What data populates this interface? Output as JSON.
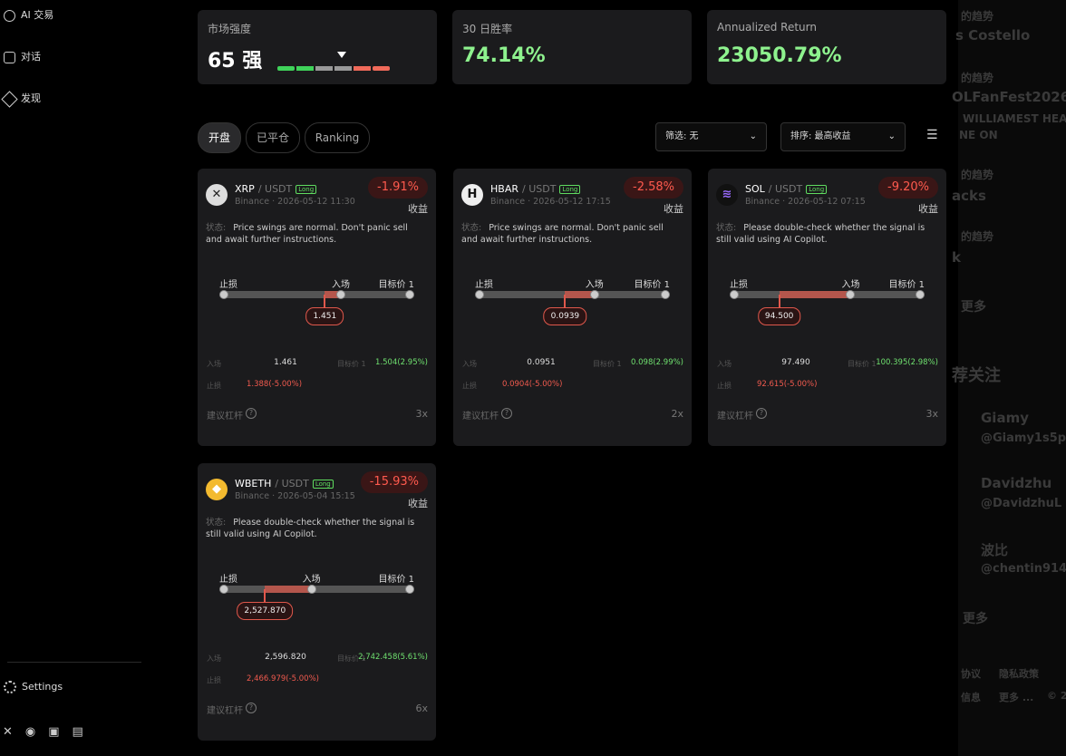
{
  "sidebar": {
    "nav": [
      "AI 交易",
      "对话",
      "发现"
    ],
    "settings": "Settings"
  },
  "stats": {
    "strength": {
      "label": "市场强度",
      "score": "65",
      "grade": "强"
    },
    "win_rate": {
      "label": "30 日胜率",
      "value": "74.14%"
    },
    "annualized": {
      "label": "Annualized Return",
      "value": "23050.79%"
    }
  },
  "tabs": [
    "开盘",
    "已平仓",
    "Ranking"
  ],
  "filter": "筛选: 无",
  "sort": "排序: 最高收益",
  "cards": [
    {
      "symbol": "XRP",
      "quote": "/ USDT",
      "side": "Long",
      "meta": "Binance · 2026-05-12 11:30",
      "pnl": "-1.91%",
      "pnl_label": "收益",
      "status_label": "状态:",
      "status": "Price swings are normal. Don't panic sell and await further instructions.",
      "stop_label": "止损",
      "entry_label": "入场",
      "target_label": "目标价 1",
      "current": "1.451",
      "entry": "1.461",
      "target": "1.504(2.95%)",
      "stop": "1.388(-5.00%)",
      "leverage_label": "建议杠杆",
      "leverage": "3x"
    },
    {
      "symbol": "HBAR",
      "quote": "/ USDT",
      "side": "Long",
      "meta": "Binance · 2026-05-12 17:15",
      "pnl": "-2.58%",
      "pnl_label": "收益",
      "status_label": "状态:",
      "status": "Price swings are normal. Don't panic sell and await further instructions.",
      "stop_label": "止损",
      "entry_label": "入场",
      "target_label": "目标价 1",
      "current": "0.0939",
      "entry": "0.0951",
      "target": "0.098(2.99%)",
      "stop": "0.0904(-5.00%)",
      "leverage_label": "建议杠杆",
      "leverage": "2x"
    },
    {
      "symbol": "SOL",
      "quote": "/ USDT",
      "side": "Long",
      "meta": "Binance · 2026-05-12 07:15",
      "pnl": "-9.20%",
      "pnl_label": "收益",
      "status_label": "状态:",
      "status": "Please double-check whether the signal is still valid using AI Copilot.",
      "stop_label": "止损",
      "entry_label": "入场",
      "target_label": "目标价 1",
      "current": "94.500",
      "entry": "97.490",
      "target": "100.395(2.98%)",
      "stop": "92.615(-5.00%)",
      "leverage_label": "建议杠杆",
      "leverage": "3x"
    },
    {
      "symbol": "WBETH",
      "quote": "/ USDT",
      "side": "Long",
      "meta": "Binance · 2026-05-04 15:15",
      "pnl": "-15.93%",
      "pnl_label": "收益",
      "status_label": "状态:",
      "status": "Please double-check whether the signal is still valid using AI Copilot.",
      "stop_label": "止损",
      "entry_label": "入场",
      "target_label": "目标价 1",
      "current": "2,527.870",
      "entry": "2,596.820",
      "target": "2,742.458(5.61%)",
      "stop": "2,466.979(-5.00%)",
      "leverage_label": "建议杠杆",
      "leverage": "6x"
    }
  ],
  "background_panel": [
    "的趋势",
    "s Costello",
    "的趋势",
    "OLFanFest2026",
    "WILLIAMEST HEA",
    "NE ON",
    "的趋势",
    "acks",
    "的趋势",
    "k",
    "更多",
    "荐关注",
    "Giamy",
    "@Giamy1s5p",
    "Davidzhu",
    "@DavidzhuL",
    "波比",
    "@chentin914",
    "更多",
    "协议",
    "隐私政策",
    "信息",
    "更多 ...",
    "© 2"
  ]
}
